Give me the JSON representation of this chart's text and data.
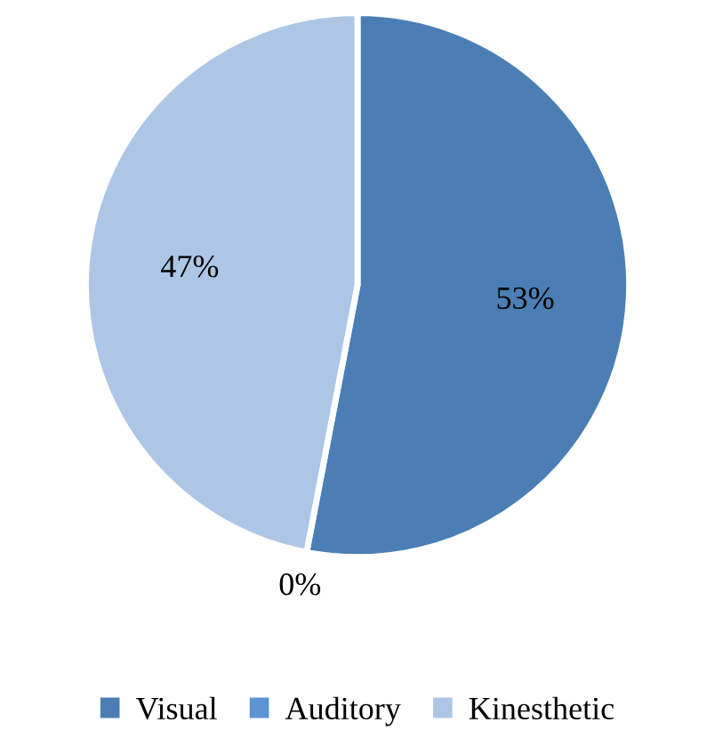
{
  "chart_data": {
    "type": "pie",
    "categories": [
      "Visual",
      "Auditory",
      "Kinesthetic"
    ],
    "values": [
      53,
      0,
      47
    ],
    "colors": [
      "#4a7eb4",
      "#5b93d3",
      "#aec6e6"
    ],
    "value_labels": [
      "53%",
      "0%",
      "47%"
    ],
    "legend": "bottom"
  }
}
